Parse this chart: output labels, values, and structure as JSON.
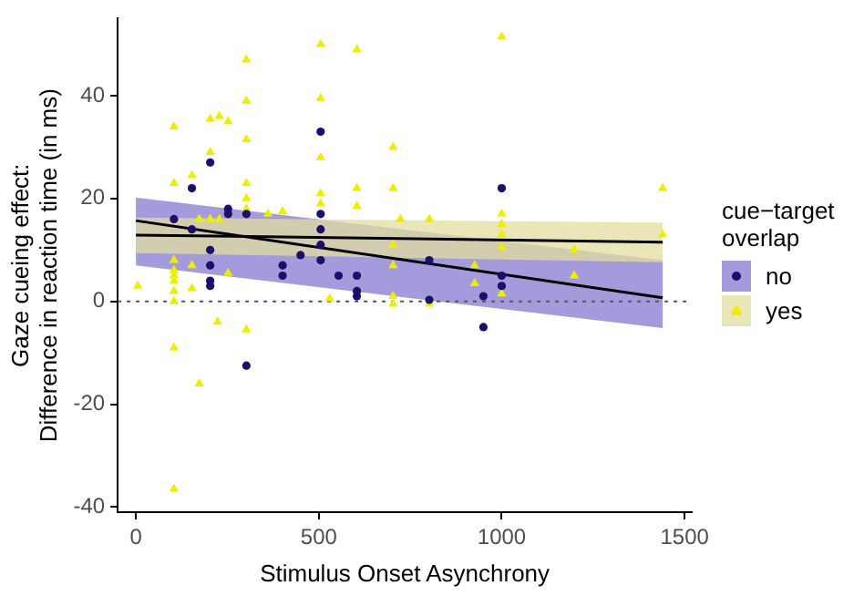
{
  "chart_data": {
    "type": "scatter",
    "xlabel": "Stimulus Onset Asynchrony",
    "ylabel": "Gaze cueing effect:\nDifference in reaction time (in ms)",
    "legend_title": "cue−target overlap",
    "legend": "right",
    "grid": false,
    "xlim": [
      -50,
      1520
    ],
    "xticks": [
      0,
      500,
      1000,
      1500
    ],
    "ylim": [
      -41,
      55
    ],
    "yticks": [
      -40,
      -20,
      0,
      20,
      40
    ],
    "ref_lines": [
      {
        "axis": "y",
        "value": 0,
        "color": "#555555",
        "line_style": "dotted"
      }
    ],
    "series": [
      {
        "name": "no",
        "marker": "circle",
        "color": "#1c0f6b",
        "x": [
          203,
          153,
          104,
          153,
          252,
          252,
          302,
          203,
          203,
          401,
          401,
          450,
          505,
          505,
          505,
          505,
          505,
          554,
          604,
          604,
          203,
          203,
          302,
          604,
          802,
          1000,
          802,
          1000,
          1000,
          950,
          950
        ],
        "values": [
          27,
          22,
          16,
          14,
          18,
          17,
          17,
          10,
          7,
          7,
          5,
          9,
          33,
          17,
          14,
          11,
          8,
          5,
          5,
          1,
          4,
          3,
          -12.5,
          2,
          0.3,
          22,
          8,
          5,
          3,
          1,
          -5
        ]
      },
      {
        "name": "yes",
        "marker": "triangle",
        "color": "#eeee00",
        "x": [
          505,
          604,
          302,
          302,
          104,
          203,
          228,
          252,
          302,
          203,
          153,
          104,
          505,
          505,
          703,
          703,
          604,
          302,
          505,
          505,
          604,
          802,
          723,
          401,
          361,
          203,
          228,
          173,
          302,
          302,
          703,
          703,
          252,
          153,
          104,
          104,
          104,
          5,
          104,
          104,
          104,
          153,
          223,
          302,
          104,
          173,
          104,
          530,
          703,
          703,
          802,
          1000,
          1440,
          1000,
          1000,
          1000,
          1000,
          1198,
          1440,
          926,
          1198,
          926,
          1000
        ],
        "values": [
          50,
          49,
          47,
          39,
          34,
          35.5,
          36,
          35,
          31.5,
          29,
          24.5,
          23,
          39.5,
          28,
          30,
          22,
          22,
          23,
          21,
          19,
          18.5,
          16,
          16,
          17.5,
          17,
          16,
          16,
          16,
          20,
          18,
          11,
          7,
          5.5,
          7,
          8,
          6,
          4,
          3,
          5,
          2,
          0,
          2.5,
          -4,
          -5.5,
          -9,
          -16,
          -36.5,
          0.5,
          1,
          -0.5,
          -0.5,
          51.5,
          22,
          17,
          15,
          13,
          10.5,
          10,
          13,
          7,
          5,
          3.5,
          1.5
        ]
      },
      {
        "type": "line",
        "marker": "none",
        "color": "#000000",
        "x": [
          0,
          1440
        ],
        "values": [
          15.7,
          0.7
        ],
        "lower": [
          7,
          -5.2
        ],
        "upper": [
          20.2,
          8
        ]
      },
      {
        "type": "line",
        "marker": "none",
        "color": "#000000",
        "x": [
          0,
          1440
        ],
        "values": [
          12.9,
          11.5
        ],
        "lower": [
          9.4,
          7.6
        ],
        "upper": [
          16.3,
          15.3
        ]
      }
    ]
  }
}
